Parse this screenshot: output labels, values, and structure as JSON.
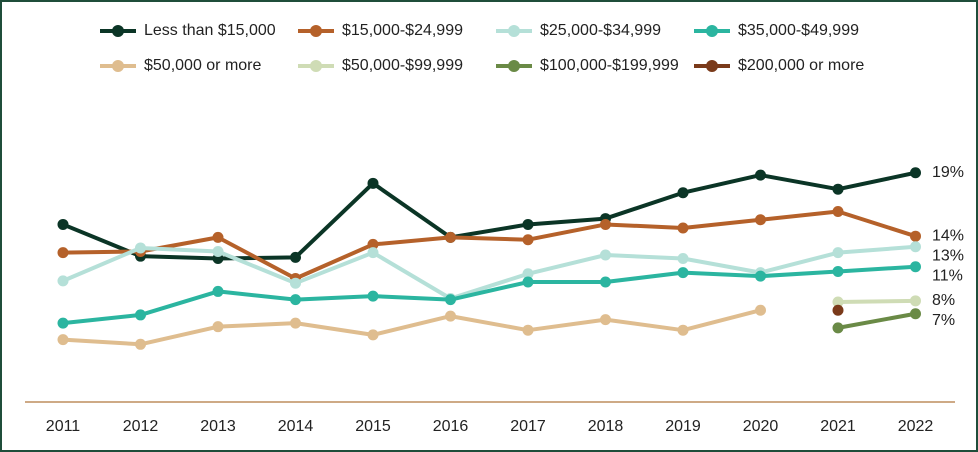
{
  "chart_data": {
    "type": "line",
    "categories": [
      "2011",
      "2012",
      "2013",
      "2014",
      "2015",
      "2016",
      "2017",
      "2018",
      "2019",
      "2020",
      "2021",
      "2022"
    ],
    "series": [
      {
        "name": "Less than $15,000",
        "color": "#0b3526",
        "values": [
          14.6,
          11.9,
          11.7,
          11.8,
          18.1,
          13.5,
          14.6,
          15.1,
          17.3,
          18.8,
          17.6,
          19.0
        ],
        "end_label": "19%"
      },
      {
        "name": "$15,000-$24,999",
        "color": "#b5612a",
        "values": [
          12.2,
          12.3,
          13.5,
          10.0,
          12.9,
          13.5,
          13.3,
          14.6,
          14.3,
          15.0,
          15.7,
          13.6
        ],
        "end_label": "14%"
      },
      {
        "name": "$25,000-$34,999",
        "color": "#b5e0d8",
        "values": [
          9.8,
          12.6,
          12.3,
          9.6,
          12.2,
          8.3,
          10.4,
          12.0,
          11.7,
          10.5,
          12.2,
          12.7
        ],
        "end_label": "13%"
      },
      {
        "name": "$35,000-$49,999",
        "color": "#2bb5a0",
        "values": [
          6.2,
          6.9,
          8.9,
          8.2,
          8.5,
          8.2,
          9.7,
          9.7,
          10.5,
          10.2,
          10.6,
          11.0
        ],
        "end_label": "11%"
      },
      {
        "name": "$50,000 or more",
        "color": "#dfbd8f",
        "values": [
          4.8,
          4.4,
          5.9,
          6.2,
          5.2,
          6.8,
          5.6,
          6.5,
          5.6,
          7.3,
          null,
          null
        ]
      },
      {
        "name": "$50,000-$99,999",
        "color": "#cfdcb5",
        "values": [
          null,
          null,
          null,
          null,
          null,
          null,
          null,
          null,
          null,
          null,
          8.0,
          8.1
        ],
        "end_label": "8%"
      },
      {
        "name": "$100,000-$199,999",
        "color": "#6a8a46",
        "values": [
          null,
          null,
          null,
          null,
          null,
          null,
          null,
          null,
          null,
          null,
          5.8,
          7.0
        ],
        "end_label": "7%"
      },
      {
        "name": "$200,000 or more",
        "color": "#7a3a1a",
        "values": [
          null,
          null,
          null,
          null,
          null,
          null,
          null,
          null,
          null,
          null,
          7.3,
          null
        ]
      }
    ]
  }
}
